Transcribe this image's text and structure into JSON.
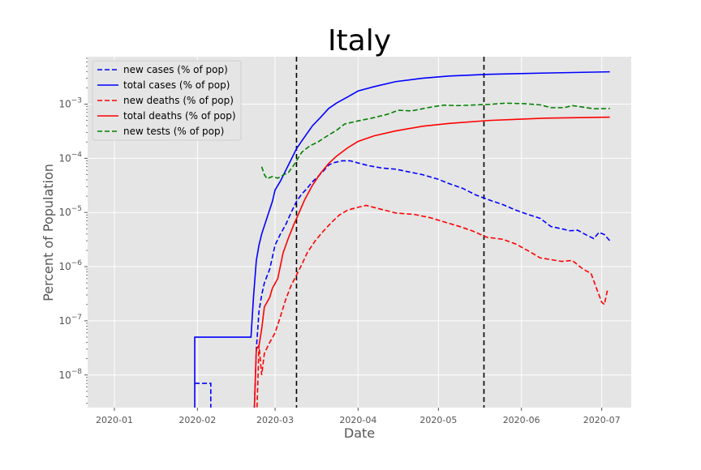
{
  "chart_data": {
    "type": "line",
    "title": "Italy",
    "xlabel": "Date",
    "ylabel": "Percent of Population",
    "yscale": "log",
    "ylim": [
      2.5e-09,
      0.0075
    ],
    "xlim": [
      "2019-12-22",
      "2020-07-12"
    ],
    "x_ticks": [
      "2020-01-01",
      "2020-02-01",
      "2020-03-01",
      "2020-04-01",
      "2020-05-01",
      "2020-06-01",
      "2020-07-01"
    ],
    "x_tick_labels": [
      "2020-01",
      "2020-02",
      "2020-03",
      "2020-04",
      "2020-05",
      "2020-06",
      "2020-07"
    ],
    "y_ticks": [
      1e-08,
      1e-07,
      1e-06,
      1e-05,
      0.0001,
      0.001
    ],
    "y_tick_labels": [
      {
        "base": "10",
        "exp": "−8"
      },
      {
        "base": "10",
        "exp": "−7"
      },
      {
        "base": "10",
        "exp": "−6"
      },
      {
        "base": "10",
        "exp": "−5"
      },
      {
        "base": "10",
        "exp": "−4"
      },
      {
        "base": "10",
        "exp": "−3"
      }
    ],
    "grid": true,
    "legend_position": "upper-left",
    "vlines": [
      "2020-03-09",
      "2020-05-18"
    ],
    "series": [
      {
        "name": "new cases (% of pop)",
        "color": "#0000ff",
        "style": "dashed",
        "points": [
          [
            "2020-01-31",
            7e-09
          ],
          [
            "2020-02-06",
            7e-09
          ],
          [
            "2020-02-06",
            1e-09
          ],
          [
            "2020-02-22",
            1e-09
          ],
          [
            "2020-02-23",
            3e-08
          ],
          [
            "2020-02-24",
            1.5e-07
          ],
          [
            "2020-02-25",
            3e-07
          ],
          [
            "2020-02-26",
            5e-07
          ],
          [
            "2020-02-28",
            9e-07
          ],
          [
            "2020-03-01",
            2.5e-06
          ],
          [
            "2020-03-03",
            4e-06
          ],
          [
            "2020-03-05",
            6e-06
          ],
          [
            "2020-03-07",
            1e-05
          ],
          [
            "2020-03-09",
            1.6e-05
          ],
          [
            "2020-03-11",
            2.2e-05
          ],
          [
            "2020-03-13",
            2.8e-05
          ],
          [
            "2020-03-15",
            3.7e-05
          ],
          [
            "2020-03-17",
            4.6e-05
          ],
          [
            "2020-03-19",
            5.8e-05
          ],
          [
            "2020-03-21",
            7.5e-05
          ],
          [
            "2020-03-23",
            8.3e-05
          ],
          [
            "2020-03-26",
            9e-05
          ],
          [
            "2020-03-29",
            9e-05
          ],
          [
            "2020-04-01",
            8.2e-05
          ],
          [
            "2020-04-05",
            7.3e-05
          ],
          [
            "2020-04-10",
            6.6e-05
          ],
          [
            "2020-04-15",
            6.3e-05
          ],
          [
            "2020-04-20",
            5.6e-05
          ],
          [
            "2020-04-25",
            5e-05
          ],
          [
            "2020-05-01",
            4.1e-05
          ],
          [
            "2020-05-05",
            3.4e-05
          ],
          [
            "2020-05-10",
            2.8e-05
          ],
          [
            "2020-05-15",
            2.1e-05
          ],
          [
            "2020-05-20",
            1.7e-05
          ],
          [
            "2020-05-25",
            1.4e-05
          ],
          [
            "2020-05-30",
            1.1e-05
          ],
          [
            "2020-06-04",
            9e-06
          ],
          [
            "2020-06-08",
            7.8e-06
          ],
          [
            "2020-06-12",
            5.5e-06
          ],
          [
            "2020-06-16",
            5e-06
          ],
          [
            "2020-06-19",
            4.6e-06
          ],
          [
            "2020-06-22",
            4.7e-06
          ],
          [
            "2020-06-25",
            3.9e-06
          ],
          [
            "2020-06-28",
            3.3e-06
          ],
          [
            "2020-06-30",
            4.3e-06
          ],
          [
            "2020-07-02",
            3.9e-06
          ],
          [
            "2020-07-04",
            3e-06
          ]
        ]
      },
      {
        "name": "total cases (% of pop)",
        "color": "#0000ff",
        "style": "solid",
        "points": [
          [
            "2020-01-31",
            1e-09
          ],
          [
            "2020-01-31",
            5e-08
          ],
          [
            "2020-02-21",
            5e-08
          ],
          [
            "2020-02-22",
            3e-07
          ],
          [
            "2020-02-23",
            1.3e-06
          ],
          [
            "2020-02-24",
            2.5e-06
          ],
          [
            "2020-02-25",
            4e-06
          ],
          [
            "2020-02-27",
            8e-06
          ],
          [
            "2020-02-29",
            1.6e-05
          ],
          [
            "2020-03-01",
            2.6e-05
          ],
          [
            "2020-03-03",
            3.8e-05
          ],
          [
            "2020-03-05",
            6e-05
          ],
          [
            "2020-03-07",
            9.5e-05
          ],
          [
            "2020-03-09",
            0.00015
          ],
          [
            "2020-03-11",
            0.00021
          ],
          [
            "2020-03-13",
            0.00029
          ],
          [
            "2020-03-15",
            0.0004
          ],
          [
            "2020-03-18",
            0.00057
          ],
          [
            "2020-03-21",
            0.00083
          ],
          [
            "2020-03-24",
            0.00105
          ],
          [
            "2020-03-28",
            0.00135
          ],
          [
            "2020-04-01",
            0.00175
          ],
          [
            "2020-04-07",
            0.0021
          ],
          [
            "2020-04-15",
            0.0026
          ],
          [
            "2020-04-25",
            0.003
          ],
          [
            "2020-05-05",
            0.0033
          ],
          [
            "2020-05-20",
            0.00355
          ],
          [
            "2020-06-10",
            0.00375
          ],
          [
            "2020-07-04",
            0.00395
          ]
        ]
      },
      {
        "name": "new deaths (% of pop)",
        "color": "#ff0000",
        "style": "dashed",
        "points": [
          [
            "2020-02-23",
            1e-09
          ],
          [
            "2020-02-24",
            3.5e-08
          ],
          [
            "2020-02-25",
            1e-08
          ],
          [
            "2020-02-26",
            2.5e-08
          ],
          [
            "2020-02-28",
            4e-08
          ],
          [
            "2020-03-01",
            6e-08
          ],
          [
            "2020-03-03",
            1.2e-07
          ],
          [
            "2020-03-05",
            2.5e-07
          ],
          [
            "2020-03-07",
            4.5e-07
          ],
          [
            "2020-03-09",
            7e-07
          ],
          [
            "2020-03-11",
            1.1e-06
          ],
          [
            "2020-03-13",
            1.8e-06
          ],
          [
            "2020-03-16",
            3e-06
          ],
          [
            "2020-03-19",
            4.5e-06
          ],
          [
            "2020-03-22",
            6.5e-06
          ],
          [
            "2020-03-25",
            9e-06
          ],
          [
            "2020-03-28",
            1.1e-05
          ],
          [
            "2020-04-01",
            1.25e-05
          ],
          [
            "2020-04-04",
            1.35e-05
          ],
          [
            "2020-04-08",
            1.2e-05
          ],
          [
            "2020-04-15",
            9.8e-06
          ],
          [
            "2020-04-22",
            9.2e-06
          ],
          [
            "2020-04-28",
            8e-06
          ],
          [
            "2020-05-04",
            6.5e-06
          ],
          [
            "2020-05-09",
            5.5e-06
          ],
          [
            "2020-05-14",
            4.5e-06
          ],
          [
            "2020-05-19",
            3.5e-06
          ],
          [
            "2020-05-25",
            3.2e-06
          ],
          [
            "2020-05-30",
            2.6e-06
          ],
          [
            "2020-06-04",
            1.9e-06
          ],
          [
            "2020-06-08",
            1.45e-06
          ],
          [
            "2020-06-12",
            1.35e-06
          ],
          [
            "2020-06-16",
            1.25e-06
          ],
          [
            "2020-06-20",
            1.3e-06
          ],
          [
            "2020-06-24",
            9e-07
          ],
          [
            "2020-06-27",
            7.5e-07
          ],
          [
            "2020-06-29",
            4e-07
          ],
          [
            "2020-07-01",
            2.2e-07
          ],
          [
            "2020-07-02",
            2e-07
          ],
          [
            "2020-07-03",
            3.5e-07
          ],
          [
            "2020-07-04",
            3.3e-07
          ]
        ]
      },
      {
        "name": "total deaths (% of pop)",
        "color": "#ff0000",
        "style": "solid",
        "points": [
          [
            "2020-02-22",
            1e-09
          ],
          [
            "2020-02-23",
            3e-08
          ],
          [
            "2020-02-24",
            3.5e-08
          ],
          [
            "2020-02-25",
            7e-08
          ],
          [
            "2020-02-26",
            1.8e-07
          ],
          [
            "2020-02-28",
            2.7e-07
          ],
          [
            "2020-02-29",
            4e-07
          ],
          [
            "2020-03-02",
            6e-07
          ],
          [
            "2020-03-04",
            1.8e-06
          ],
          [
            "2020-03-06",
            3.4e-06
          ],
          [
            "2020-03-08",
            6e-06
          ],
          [
            "2020-03-10",
            1e-05
          ],
          [
            "2020-03-12",
            1.7e-05
          ],
          [
            "2020-03-15",
            3.2e-05
          ],
          [
            "2020-03-18",
            5.3e-05
          ],
          [
            "2020-03-21",
            8e-05
          ],
          [
            "2020-03-24",
            0.00011
          ],
          [
            "2020-03-28",
            0.000155
          ],
          [
            "2020-04-01",
            0.000205
          ],
          [
            "2020-04-07",
            0.00026
          ],
          [
            "2020-04-15",
            0.00032
          ],
          [
            "2020-04-25",
            0.00039
          ],
          [
            "2020-05-05",
            0.00044
          ],
          [
            "2020-05-20",
            0.0005
          ],
          [
            "2020-06-10",
            0.00055
          ],
          [
            "2020-07-04",
            0.000575
          ]
        ]
      },
      {
        "name": "new tests (% of pop)",
        "color": "#008000",
        "style": "dashed",
        "points": [
          [
            "2020-02-25",
            7e-05
          ],
          [
            "2020-02-26",
            5e-05
          ],
          [
            "2020-02-27",
            4.2e-05
          ],
          [
            "2020-02-29",
            4.6e-05
          ],
          [
            "2020-03-02",
            4.3e-05
          ],
          [
            "2020-03-04",
            4.9e-05
          ],
          [
            "2020-03-06",
            5.5e-05
          ],
          [
            "2020-03-08",
            7.5e-05
          ],
          [
            "2020-03-11",
            0.00013
          ],
          [
            "2020-03-14",
            0.00017
          ],
          [
            "2020-03-17",
            0.0002
          ],
          [
            "2020-03-20",
            0.00025
          ],
          [
            "2020-03-24",
            0.00033
          ],
          [
            "2020-03-27",
            0.00043
          ],
          [
            "2020-04-01",
            0.00049
          ],
          [
            "2020-04-06",
            0.00055
          ],
          [
            "2020-04-12",
            0.00065
          ],
          [
            "2020-04-16",
            0.00077
          ],
          [
            "2020-04-21",
            0.00075
          ],
          [
            "2020-04-27",
            0.00086
          ],
          [
            "2020-05-03",
            0.00096
          ],
          [
            "2020-05-08",
            0.00094
          ],
          [
            "2020-05-13",
            0.00096
          ],
          [
            "2020-05-20",
            0.00099
          ],
          [
            "2020-05-26",
            0.00104
          ],
          [
            "2020-06-02",
            0.00102
          ],
          [
            "2020-06-08",
            0.00097
          ],
          [
            "2020-06-12",
            0.00086
          ],
          [
            "2020-06-17",
            0.00086
          ],
          [
            "2020-06-20",
            0.00094
          ],
          [
            "2020-06-24",
            0.00088
          ],
          [
            "2020-06-28",
            0.00082
          ],
          [
            "2020-07-04",
            0.00083
          ]
        ]
      }
    ]
  }
}
